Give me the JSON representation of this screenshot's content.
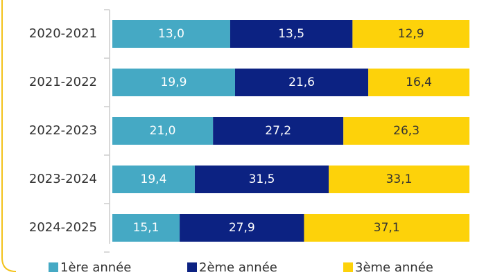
{
  "chart_data": {
    "type": "bar",
    "orientation": "horizontal",
    "stack": "percent",
    "categories": [
      "2020-2021",
      "2021-2022",
      "2022-2023",
      "2023-2024",
      "2024-2025"
    ],
    "series": [
      {
        "name": "1ère année",
        "color": "#45a9c4",
        "label_color": "#ffffff",
        "values": [
          13.0,
          19.9,
          21.0,
          19.4,
          15.1
        ],
        "value_labels": [
          "13,0",
          "19,9",
          "21,0",
          "19,4",
          "15,1"
        ]
      },
      {
        "name": "2ème année",
        "color": "#0c2282",
        "label_color": "#ffffff",
        "values": [
          13.5,
          21.6,
          27.2,
          31.5,
          27.9
        ],
        "value_labels": [
          "13,5",
          "21,6",
          "27,2",
          "31,5",
          "27,9"
        ]
      },
      {
        "name": "3ème année",
        "color": "#fdd20a",
        "label_color": "#333333",
        "values": [
          12.9,
          16.4,
          26.3,
          33.1,
          37.1
        ],
        "value_labels": [
          "12,9",
          "16,4",
          "26,3",
          "33,1",
          "37,1"
        ]
      }
    ],
    "legend": "bottom"
  }
}
